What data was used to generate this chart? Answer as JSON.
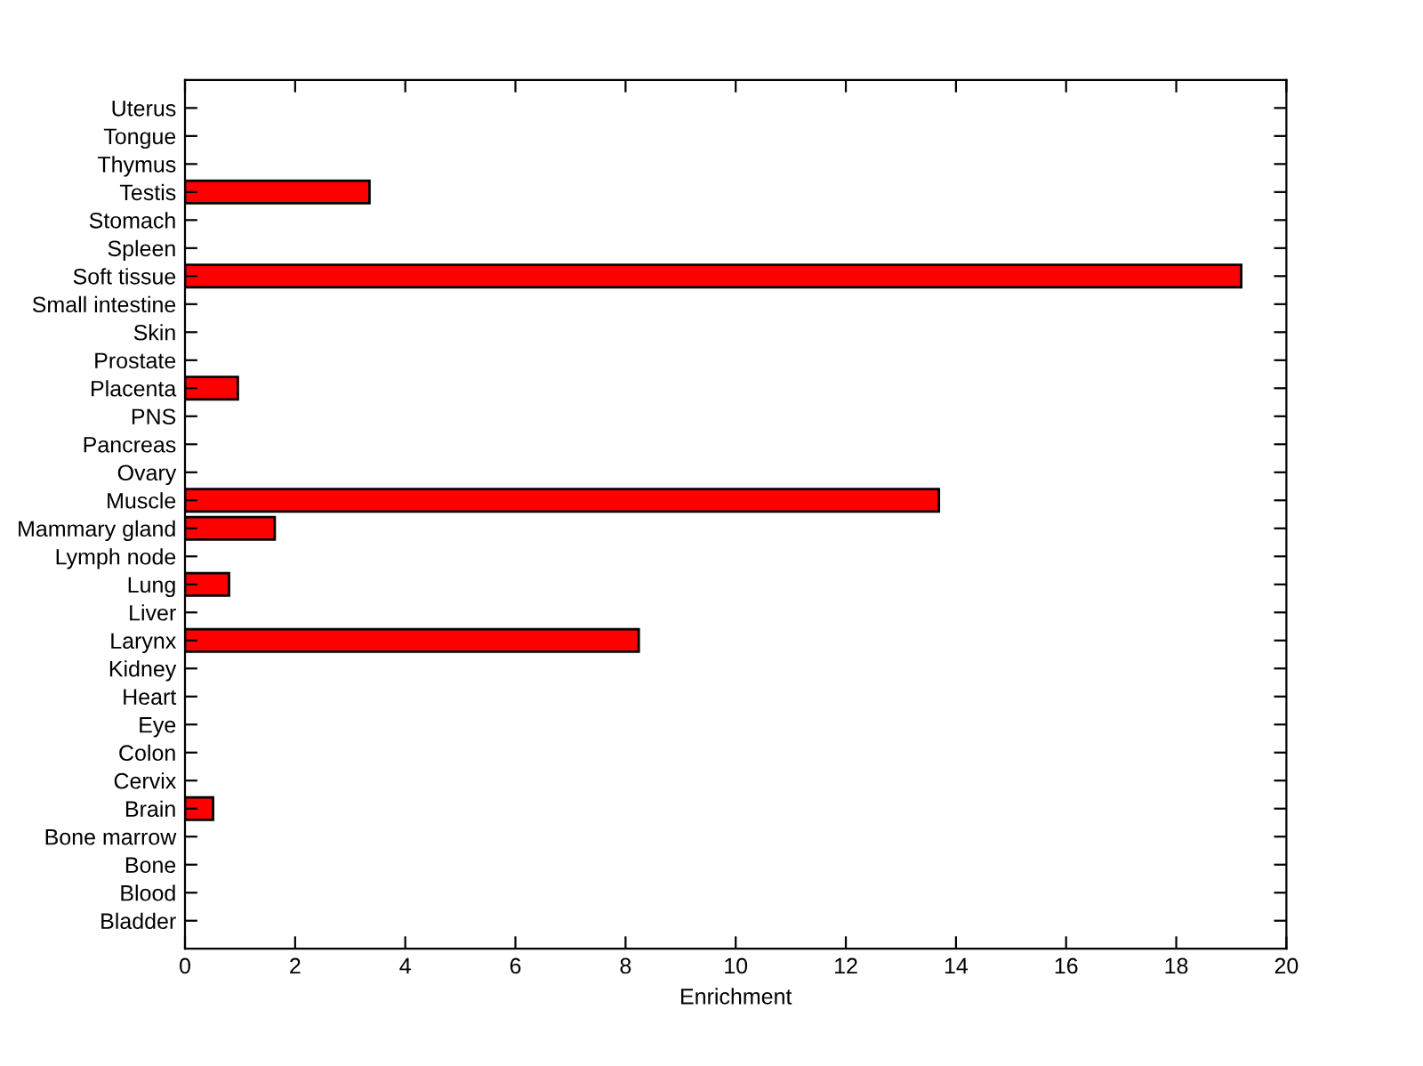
{
  "chart_data": {
    "type": "bar",
    "orientation": "horizontal",
    "xlabel": "Enrichment",
    "categories": [
      "Uterus",
      "Tongue",
      "Thymus",
      "Testis",
      "Stomach",
      "Spleen",
      "Soft tissue",
      "Small intestine",
      "Skin",
      "Prostate",
      "Placenta",
      "PNS",
      "Pancreas",
      "Ovary",
      "Muscle",
      "Mammary gland",
      "Lymph node",
      "Lung",
      "Liver",
      "Larynx",
      "Kidney",
      "Heart",
      "Eye",
      "Colon",
      "Cervix",
      "Brain",
      "Bone marrow",
      "Bone",
      "Blood",
      "Bladder"
    ],
    "values": [
      0,
      0,
      0,
      3.35,
      0,
      0,
      19.18,
      0,
      0,
      0,
      0.96,
      0,
      0,
      0,
      13.69,
      1.63,
      0,
      0.8,
      0,
      8.24,
      0,
      0,
      0,
      0,
      0,
      0.51,
      0,
      0,
      0,
      0
    ],
    "color": "#ff0000",
    "xlim": [
      0,
      20
    ],
    "xticks": [
      0,
      2,
      4,
      6,
      8,
      10,
      12,
      14,
      16,
      18,
      20
    ],
    "grid": false,
    "legend": false
  }
}
